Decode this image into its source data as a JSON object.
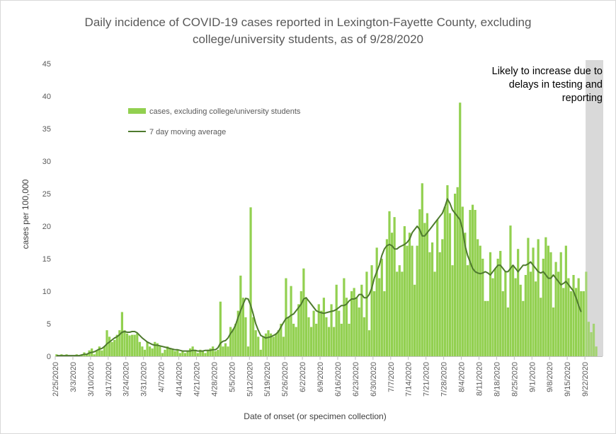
{
  "chart_data": {
    "type": "bar",
    "title_line1": "Daily incidence of COVID-19 cases reported in Lexington-Fayette County, excluding",
    "title_line2": "college/university students, as of 9/28/2020",
    "xlabel": "Date of onset (or specimen collection)",
    "ylabel": "cases per 100,000",
    "ylim": [
      0,
      45
    ],
    "yticks": [
      0,
      5,
      10,
      15,
      20,
      25,
      30,
      35,
      40,
      45
    ],
    "x_start": "2/25/2020",
    "x_end": "9/28/2020",
    "xtick_labels": [
      "2/25/2020",
      "3/3/2020",
      "3/10/2020",
      "3/17/2020",
      "3/24/2020",
      "3/31/2020",
      "4/7/2020",
      "4/14/2020",
      "4/21/2020",
      "4/28/2020",
      "5/5/2020",
      "5/12/2020",
      "5/19/2020",
      "5/26/2020",
      "6/2/2020",
      "6/9/2020",
      "6/16/2020",
      "6/23/2020",
      "6/30/2020",
      "7/7/2020",
      "7/14/2020",
      "7/21/2020",
      "7/28/2020",
      "8/4/2020",
      "8/11/2020",
      "8/18/2020",
      "8/25/2020",
      "9/1/2020",
      "9/8/2020",
      "9/15/2020",
      "9/22/2020"
    ],
    "bar_color": "#92d050",
    "line_color": "#4e7a2e",
    "shade_color": "#d9d9d9",
    "shaded_region": {
      "from": "9/22/2020",
      "to": "9/28/2020"
    },
    "shaded_annotation": [
      "Likely to increase due to",
      "delays in testing and",
      "reporting"
    ],
    "legend": {
      "position": "top-left",
      "bars_label": "cases, excluding college/university students",
      "line_label": "7 day moving average"
    },
    "series": [
      {
        "kind": "bar",
        "values": [
          0.3,
          0,
          0.3,
          0,
          0.3,
          0,
          0,
          0,
          0.3,
          0,
          0.3,
          0.6,
          0.3,
          0.9,
          1.2,
          0.3,
          0.9,
          1.5,
          0.9,
          1.5,
          4.0,
          3.0,
          2.2,
          2.5,
          3.3,
          4.0,
          6.8,
          4.0,
          3.5,
          3.2,
          3.3,
          3.3,
          3.5,
          2.2,
          1.5,
          1.0,
          2.2,
          1.5,
          1.2,
          2.2,
          2.0,
          1.5,
          0.5,
          1.0,
          1.5,
          1.2,
          1.0,
          0.8,
          1.0,
          0.5,
          0.8,
          0.5,
          0.8,
          1.2,
          1.5,
          1.0,
          0.5,
          1.0,
          0.8,
          0.5,
          1.0,
          1.2,
          1.5,
          0.8,
          1.0,
          8.4,
          1.5,
          2.0,
          1.5,
          4.5,
          4.2,
          5.0,
          7.0,
          12.4,
          9.0,
          6.0,
          1.5,
          22.9,
          6.0,
          4.0,
          3.0,
          1.0,
          3.0,
          3.5,
          4.0,
          3.5,
          3.0,
          3.5,
          4.0,
          5.0,
          3.0,
          12.0,
          6.0,
          10.8,
          5.0,
          4.5,
          8.0,
          10.0,
          13.5,
          9.0,
          6.0,
          4.5,
          7.0,
          5.0,
          8.0,
          7.0,
          9.0,
          6.0,
          4.5,
          8.0,
          4.5,
          11.0,
          7.0,
          5.0,
          12.0,
          9.0,
          5.0,
          10.0,
          10.5,
          9.0,
          7.5,
          11.0,
          6.0,
          13.0,
          4.0,
          14.0,
          10.0,
          16.7,
          12.0,
          15.0,
          10.0,
          18.0,
          22.3,
          19.0,
          21.4,
          13.0,
          14.0,
          13.0,
          20.0,
          17.0,
          19.0,
          17.0,
          11.0,
          17.0,
          22.6,
          26.6,
          20.5,
          22.0,
          16.0,
          17.5,
          13.0,
          21.0,
          16.0,
          18.0,
          23.0,
          26.3,
          22.0,
          14.0,
          25.0,
          26.0,
          39.0,
          23.0,
          19.0,
          14.0,
          22.5,
          23.3,
          22.5,
          18.0,
          17.0,
          15.0,
          8.5,
          8.5,
          16.0,
          12.0,
          13.5,
          15.0,
          16.2,
          10.0,
          13.0,
          7.5,
          20.1,
          14.0,
          12.0,
          16.5,
          11.0,
          8.5,
          12.5,
          18.2,
          13.0,
          16.7,
          11.5,
          18.0,
          9.0,
          15.0,
          18.3,
          17.0,
          16.0,
          7.5,
          14.5,
          13.0,
          16.0,
          10.5,
          17.0,
          12.0,
          10.0,
          12.5,
          10.5,
          12.0,
          10.0,
          10.0,
          13.0,
          5.3,
          3.7,
          5.0,
          1.5
        ]
      },
      {
        "kind": "line",
        "values": [
          0.1,
          0.1,
          0.1,
          0.1,
          0.1,
          0.1,
          0.1,
          0.1,
          0.1,
          0.1,
          0.2,
          0.3,
          0.3,
          0.5,
          0.6,
          0.7,
          0.9,
          1.1,
          1.2,
          1.5,
          1.9,
          2.2,
          2.5,
          2.8,
          3.0,
          3.3,
          3.7,
          3.8,
          3.7,
          3.7,
          3.8,
          3.8,
          3.6,
          3.2,
          2.8,
          2.5,
          2.2,
          2.0,
          1.8,
          1.7,
          1.7,
          1.6,
          1.5,
          1.4,
          1.3,
          1.2,
          1.1,
          1.0,
          1.0,
          0.9,
          0.8,
          0.8,
          0.8,
          0.8,
          0.9,
          0.9,
          0.8,
          0.8,
          0.8,
          0.9,
          0.9,
          0.9,
          1.0,
          1.0,
          1.3,
          2.0,
          2.3,
          2.4,
          2.8,
          3.5,
          4.0,
          4.8,
          6.0,
          7.0,
          8.0,
          8.9,
          8.8,
          7.8,
          6.5,
          5.0,
          4.0,
          3.2,
          3.0,
          2.8,
          2.9,
          3.0,
          3.2,
          3.4,
          3.8,
          4.5,
          5.2,
          5.8,
          6.0,
          6.3,
          6.5,
          7.0,
          7.5,
          8.0,
          8.8,
          9.0,
          8.5,
          8.0,
          7.5,
          7.0,
          6.8,
          6.7,
          6.6,
          6.7,
          6.8,
          6.9,
          7.0,
          7.2,
          7.5,
          7.8,
          7.8,
          8.0,
          8.5,
          8.8,
          8.8,
          9.0,
          9.5,
          9.5,
          9.0,
          9.0,
          9.5,
          10.5,
          12.0,
          13.0,
          14.0,
          15.5,
          16.5,
          17.0,
          17.2,
          17.0,
          16.5,
          16.5,
          16.8,
          17.0,
          17.2,
          17.5,
          18.0,
          19.0,
          19.5,
          20.0,
          19.5,
          18.5,
          18.5,
          19.0,
          19.5,
          20.0,
          20.5,
          21.0,
          21.5,
          22.0,
          23.0,
          24.2,
          23.5,
          22.5,
          22.0,
          21.5,
          21.0,
          19.5,
          17.0,
          15.5,
          14.5,
          13.5,
          13.0,
          12.8,
          12.7,
          12.8,
          13.0,
          12.8,
          12.5,
          13.0,
          13.5,
          14.0,
          14.0,
          13.5,
          13.0,
          13.0,
          13.5,
          14.0,
          13.5,
          13.0,
          13.5,
          14.0,
          14.0,
          14.2,
          14.5,
          14.0,
          13.5,
          13.0,
          12.8,
          13.0,
          12.5,
          12.0,
          12.0,
          12.5,
          12.0,
          11.5,
          11.0,
          11.2,
          11.5,
          11.0,
          10.5,
          10.0,
          9.0,
          7.8,
          6.8
        ]
      }
    ]
  }
}
